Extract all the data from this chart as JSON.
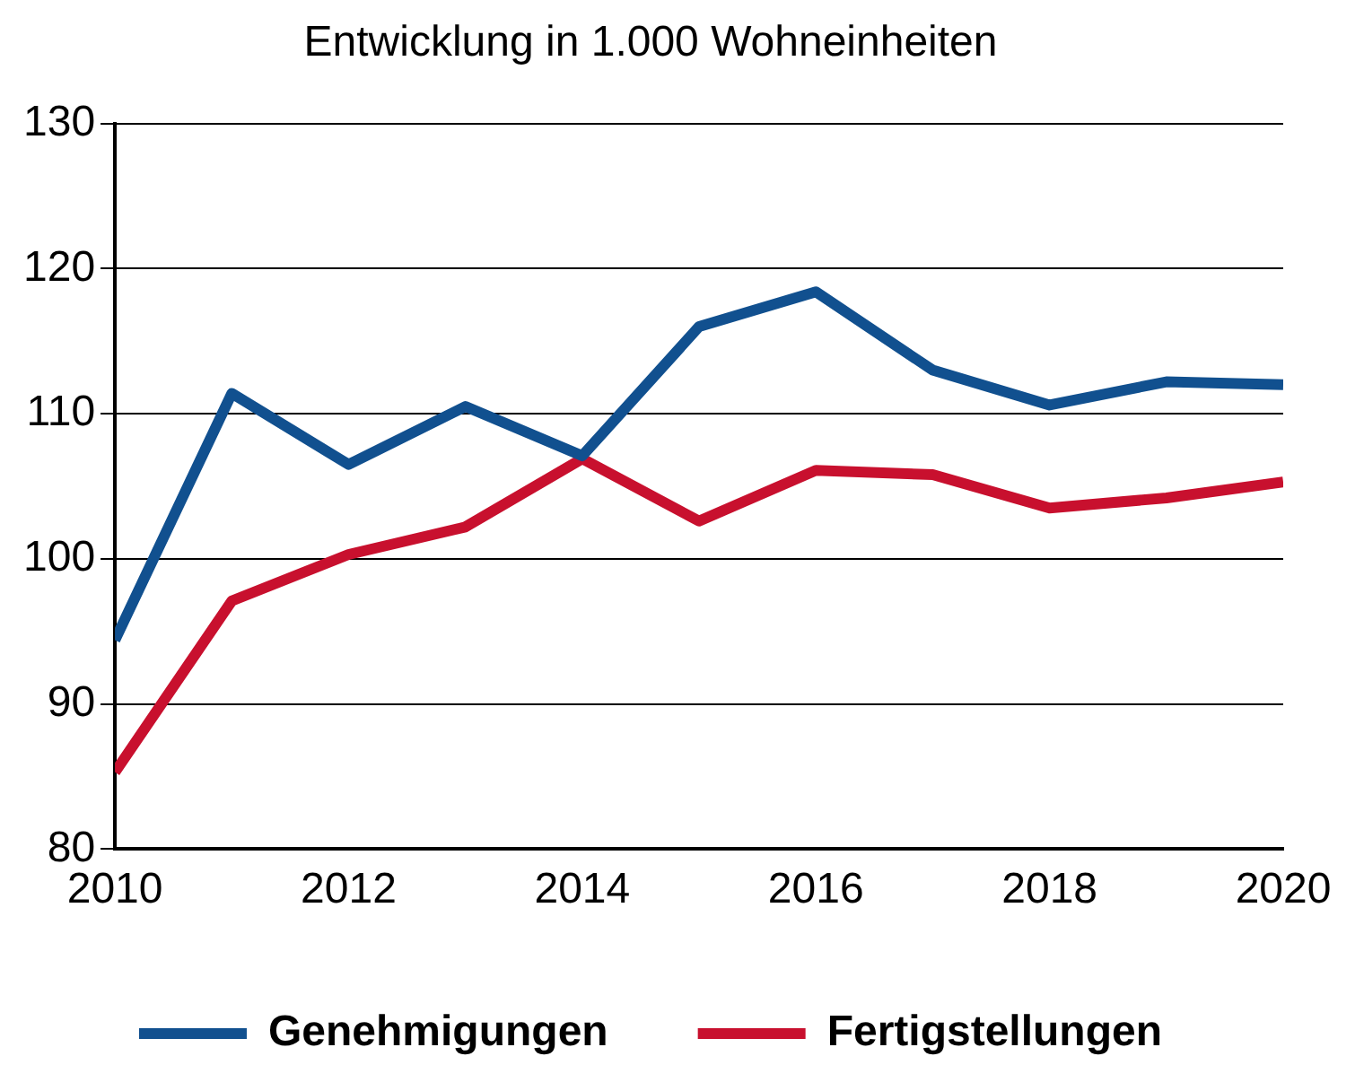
{
  "chart_data": {
    "type": "line",
    "title": "Entwicklung in 1.000 Wohneinheiten",
    "x": [
      2010,
      2011,
      2012,
      2013,
      2014,
      2015,
      2016,
      2017,
      2018,
      2019,
      2020
    ],
    "series": [
      {
        "name": "Genehmigungen",
        "color": "#11508f",
        "values": [
          94.4,
          111.4,
          106.5,
          110.5,
          107.1,
          116,
          118.4,
          113,
          110.6,
          112.2,
          112
        ]
      },
      {
        "name": "Fertigstellungen",
        "color": "#c8102e",
        "values": [
          85.3,
          97.1,
          100.3,
          102.2,
          106.9,
          102.6,
          106.1,
          105.8,
          103.5,
          104.2,
          105.3
        ]
      }
    ],
    "xlim": [
      2010,
      2020
    ],
    "xticks": [
      2010,
      2012,
      2014,
      2016,
      2018,
      2020
    ],
    "ylim": [
      80,
      130
    ],
    "yticks": [
      80,
      90,
      100,
      110,
      120,
      130
    ],
    "grid": "y",
    "legend": "bottom",
    "marker": "none",
    "line_style": "solid"
  }
}
